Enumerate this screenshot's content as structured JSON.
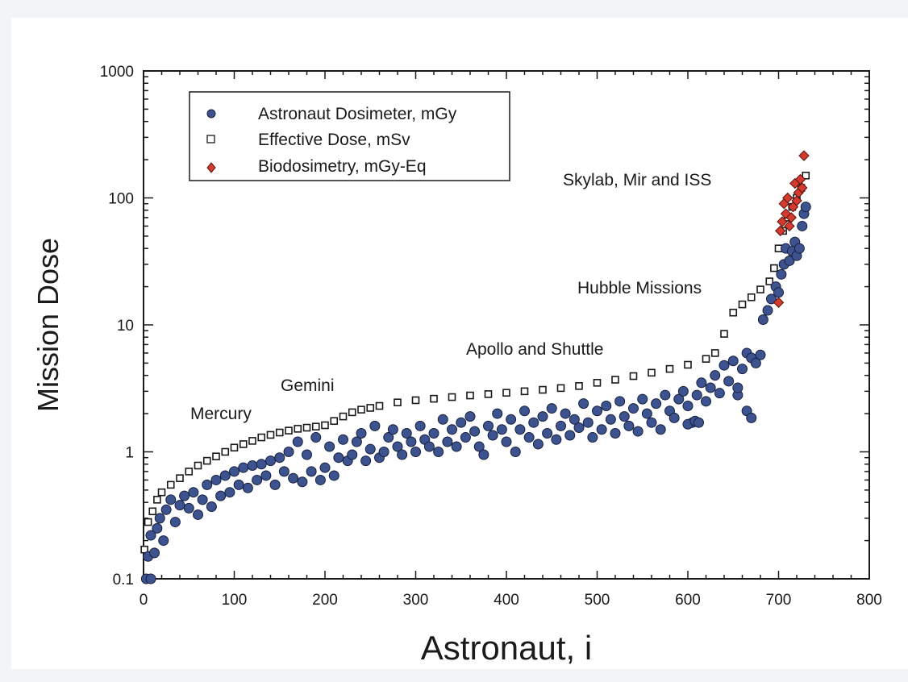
{
  "chart_data": {
    "type": "scatter",
    "title": "",
    "xlabel": "Astronaut, i",
    "ylabel": "Mission Dose",
    "xlim": [
      0,
      800
    ],
    "ylim": [
      0.1,
      1000
    ],
    "yscale": "log",
    "xticks": [
      "0",
      "100",
      "200",
      "300",
      "400",
      "500",
      "600",
      "700",
      "800"
    ],
    "yticks": [
      "0.1",
      "1",
      "10",
      "100",
      "1000"
    ],
    "legend": {
      "position": "top-left",
      "entries": [
        "Astronaut Dosimeter, mGy",
        "Effective Dose, mSv",
        "Biodosimetry, mGy-Eq"
      ]
    },
    "annotations": [
      {
        "text": "Mercury",
        "x": 95,
        "y": 1.9
      },
      {
        "text": "Gemini",
        "x": 185,
        "y": 2.6
      },
      {
        "text": "Apollo and Shuttle",
        "x": 440,
        "y": 8.2
      },
      {
        "text": "Hubble Missions",
        "x": 560,
        "y": 21
      },
      {
        "text": "Skylab, Mir and ISS",
        "x": 620,
        "y": 137
      }
    ],
    "series": [
      {
        "name": "Effective Dose, mSv",
        "marker": "square",
        "color": "#ffffff",
        "edge_color": "#1a1a1a",
        "points": [
          [
            1,
            0.17
          ],
          [
            5,
            0.28
          ],
          [
            10,
            0.34
          ],
          [
            15,
            0.42
          ],
          [
            20,
            0.48
          ],
          [
            30,
            0.55
          ],
          [
            40,
            0.62
          ],
          [
            50,
            0.7
          ],
          [
            60,
            0.78
          ],
          [
            70,
            0.85
          ],
          [
            80,
            0.92
          ],
          [
            90,
            1.0
          ],
          [
            100,
            1.08
          ],
          [
            110,
            1.15
          ],
          [
            120,
            1.22
          ],
          [
            130,
            1.3
          ],
          [
            140,
            1.36
          ],
          [
            150,
            1.42
          ],
          [
            160,
            1.47
          ],
          [
            170,
            1.52
          ],
          [
            180,
            1.55
          ],
          [
            190,
            1.58
          ],
          [
            200,
            1.62
          ],
          [
            210,
            1.75
          ],
          [
            220,
            1.9
          ],
          [
            230,
            2.05
          ],
          [
            240,
            2.15
          ],
          [
            250,
            2.22
          ],
          [
            260,
            2.3
          ],
          [
            280,
            2.45
          ],
          [
            300,
            2.55
          ],
          [
            320,
            2.62
          ],
          [
            340,
            2.7
          ],
          [
            360,
            2.78
          ],
          [
            380,
            2.85
          ],
          [
            400,
            2.92
          ],
          [
            420,
            3.0
          ],
          [
            440,
            3.08
          ],
          [
            460,
            3.18
          ],
          [
            480,
            3.3
          ],
          [
            500,
            3.5
          ],
          [
            520,
            3.7
          ],
          [
            540,
            3.95
          ],
          [
            560,
            4.2
          ],
          [
            580,
            4.5
          ],
          [
            600,
            4.85
          ],
          [
            620,
            5.4
          ],
          [
            630,
            6.0
          ],
          [
            640,
            8.5
          ],
          [
            650,
            12.5
          ],
          [
            660,
            14.5
          ],
          [
            670,
            16.5
          ],
          [
            680,
            19.0
          ],
          [
            690,
            22.0
          ],
          [
            695,
            28.0
          ],
          [
            700,
            40.0
          ],
          [
            705,
            55.0
          ],
          [
            710,
            70.0
          ],
          [
            715,
            85.0
          ],
          [
            720,
            100.0
          ],
          [
            725,
            120.0
          ],
          [
            730,
            150.0
          ]
        ]
      },
      {
        "name": "Astronaut Dosimeter, mGy",
        "marker": "circle",
        "color": "#3d5390",
        "edge_color": "#16203d",
        "points": [
          [
            3,
            0.1
          ],
          [
            8,
            0.1
          ],
          [
            5,
            0.15
          ],
          [
            8,
            0.22
          ],
          [
            12,
            0.16
          ],
          [
            15,
            0.25
          ],
          [
            18,
            0.3
          ],
          [
            22,
            0.2
          ],
          [
            25,
            0.35
          ],
          [
            30,
            0.42
          ],
          [
            35,
            0.28
          ],
          [
            40,
            0.38
          ],
          [
            45,
            0.45
          ],
          [
            50,
            0.36
          ],
          [
            55,
            0.48
          ],
          [
            60,
            0.32
          ],
          [
            65,
            0.42
          ],
          [
            70,
            0.55
          ],
          [
            75,
            0.37
          ],
          [
            80,
            0.6
          ],
          [
            85,
            0.45
          ],
          [
            90,
            0.65
          ],
          [
            95,
            0.48
          ],
          [
            100,
            0.7
          ],
          [
            105,
            0.55
          ],
          [
            110,
            0.75
          ],
          [
            115,
            0.52
          ],
          [
            120,
            0.78
          ],
          [
            125,
            0.6
          ],
          [
            130,
            0.8
          ],
          [
            135,
            0.65
          ],
          [
            140,
            0.85
          ],
          [
            145,
            0.55
          ],
          [
            150,
            0.9
          ],
          [
            155,
            0.7
          ],
          [
            160,
            1.0
          ],
          [
            165,
            0.62
          ],
          [
            170,
            1.2
          ],
          [
            175,
            0.58
          ],
          [
            180,
            0.95
          ],
          [
            185,
            0.7
          ],
          [
            190,
            1.3
          ],
          [
            195,
            0.6
          ],
          [
            200,
            0.75
          ],
          [
            205,
            1.1
          ],
          [
            210,
            0.65
          ],
          [
            215,
            0.9
          ],
          [
            220,
            1.25
          ],
          [
            225,
            0.85
          ],
          [
            230,
            0.95
          ],
          [
            235,
            1.2
          ],
          [
            240,
            1.4
          ],
          [
            245,
            0.85
          ],
          [
            250,
            1.05
          ],
          [
            255,
            1.6
          ],
          [
            260,
            0.9
          ],
          [
            265,
            1.0
          ],
          [
            270,
            1.3
          ],
          [
            275,
            1.5
          ],
          [
            280,
            1.1
          ],
          [
            285,
            0.95
          ],
          [
            290,
            1.4
          ],
          [
            295,
            1.2
          ],
          [
            300,
            1.0
          ],
          [
            305,
            1.6
          ],
          [
            310,
            1.25
          ],
          [
            315,
            1.1
          ],
          [
            320,
            1.4
          ],
          [
            325,
            1.0
          ],
          [
            330,
            1.8
          ],
          [
            335,
            1.2
          ],
          [
            340,
            1.5
          ],
          [
            345,
            1.1
          ],
          [
            350,
            1.7
          ],
          [
            355,
            1.3
          ],
          [
            360,
            1.9
          ],
          [
            365,
            1.45
          ],
          [
            370,
            1.1
          ],
          [
            375,
            0.95
          ],
          [
            380,
            1.6
          ],
          [
            385,
            1.35
          ],
          [
            390,
            2.0
          ],
          [
            395,
            1.5
          ],
          [
            400,
            1.2
          ],
          [
            405,
            1.8
          ],
          [
            410,
            1.0
          ],
          [
            415,
            1.5
          ],
          [
            420,
            2.1
          ],
          [
            425,
            1.3
          ],
          [
            430,
            1.7
          ],
          [
            435,
            1.15
          ],
          [
            440,
            1.9
          ],
          [
            445,
            1.4
          ],
          [
            450,
            2.2
          ],
          [
            455,
            1.25
          ],
          [
            460,
            1.6
          ],
          [
            465,
            2.0
          ],
          [
            470,
            1.35
          ],
          [
            475,
            1.8
          ],
          [
            480,
            1.55
          ],
          [
            485,
            2.4
          ],
          [
            490,
            1.7
          ],
          [
            495,
            1.3
          ],
          [
            500,
            2.1
          ],
          [
            505,
            1.5
          ],
          [
            510,
            2.3
          ],
          [
            515,
            1.8
          ],
          [
            520,
            1.4
          ],
          [
            525,
            2.5
          ],
          [
            530,
            1.9
          ],
          [
            535,
            1.6
          ],
          [
            540,
            2.2
          ],
          [
            545,
            1.45
          ],
          [
            550,
            2.6
          ],
          [
            555,
            2.0
          ],
          [
            560,
            1.7
          ],
          [
            565,
            2.4
          ],
          [
            570,
            1.5
          ],
          [
            575,
            2.8
          ],
          [
            580,
            2.1
          ],
          [
            585,
            1.85
          ],
          [
            590,
            2.6
          ],
          [
            595,
            3.0
          ],
          [
            600,
            2.3
          ],
          [
            605,
            1.7
          ],
          [
            610,
            2.8
          ],
          [
            615,
            3.5
          ],
          [
            620,
            2.5
          ],
          [
            625,
            3.2
          ],
          [
            630,
            4.0
          ],
          [
            635,
            2.9
          ],
          [
            640,
            4.8
          ],
          [
            645,
            3.6
          ],
          [
            650,
            5.2
          ],
          [
            655,
            2.8
          ],
          [
            660,
            4.5
          ],
          [
            665,
            6.0
          ],
          [
            670,
            5.5
          ],
          [
            675,
            5.0
          ],
          [
            680,
            5.8
          ],
          [
            665,
            2.1
          ],
          [
            670,
            1.85
          ],
          [
            655,
            3.2
          ],
          [
            600,
            1.65
          ],
          [
            608,
            1.75
          ],
          [
            612,
            1.7
          ],
          [
            683,
            11.0
          ],
          [
            688,
            13.0
          ],
          [
            692,
            16.0
          ],
          [
            697,
            20.0
          ],
          [
            700,
            18.0
          ],
          [
            703,
            25.0
          ],
          [
            706,
            30.0
          ],
          [
            708,
            40.0
          ],
          [
            712,
            32.0
          ],
          [
            715,
            38.0
          ],
          [
            718,
            45.0
          ],
          [
            720,
            35.0
          ],
          [
            723,
            40.0
          ],
          [
            726,
            60.0
          ],
          [
            728,
            75.0
          ],
          [
            730,
            85.0
          ]
        ]
      },
      {
        "name": "Biodosimetry, mGy-Eq",
        "marker": "diamond",
        "color": "#d43a2e",
        "edge_color": "#5a1410",
        "points": [
          [
            700,
            15.0
          ],
          [
            702,
            55.0
          ],
          [
            704,
            65.0
          ],
          [
            706,
            90.0
          ],
          [
            708,
            75.0
          ],
          [
            710,
            100.0
          ],
          [
            712,
            60.0
          ],
          [
            714,
            70.0
          ],
          [
            716,
            85.0
          ],
          [
            718,
            130.0
          ],
          [
            720,
            95.0
          ],
          [
            722,
            110.0
          ],
          [
            724,
            140.0
          ],
          [
            726,
            120.0
          ],
          [
            728,
            215.0
          ]
        ]
      }
    ]
  }
}
